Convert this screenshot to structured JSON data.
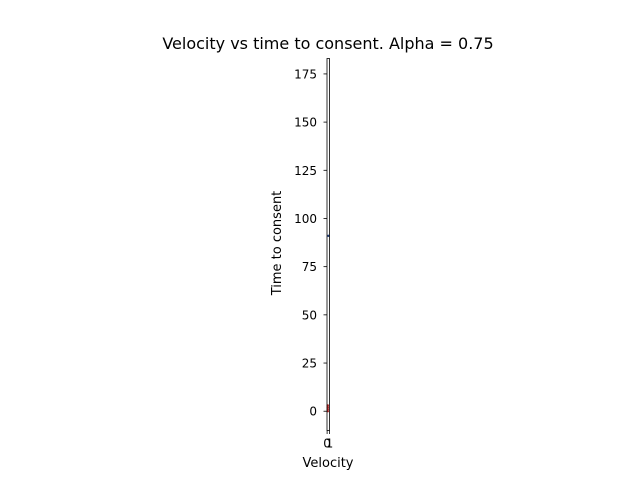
{
  "chart_data": {
    "type": "scatter",
    "title": "Velocity vs time to consent. Alpha = 0.75",
    "xlabel": "Velocity",
    "ylabel": "Time to consent",
    "xlim": [
      -0.05,
      1.05
    ],
    "ylim": [
      -10,
      183
    ],
    "grid": false,
    "legend": "none",
    "x_ticks": [
      {
        "value": 0,
        "label": "0"
      },
      {
        "value": 1,
        "label": "1"
      }
    ],
    "y_ticks": [
      {
        "value": 0,
        "label": "0"
      },
      {
        "value": 25,
        "label": "25"
      },
      {
        "value": 50,
        "label": "50"
      },
      {
        "value": 75,
        "label": "75"
      },
      {
        "value": 100,
        "label": "100"
      },
      {
        "value": 125,
        "label": "125"
      },
      {
        "value": 150,
        "label": "150"
      },
      {
        "value": 175,
        "label": "175"
      }
    ],
    "series": [
      {
        "color": "#1f3c7a",
        "points": [
          {
            "x": 0.55,
            "y": 91
          }
        ]
      },
      {
        "color": "#b22222",
        "points": [
          {
            "x": 0.3,
            "y": 0
          },
          {
            "x": 0.3,
            "y": 1
          },
          {
            "x": 0.3,
            "y": 2
          },
          {
            "x": 0.3,
            "y": 3
          }
        ]
      }
    ],
    "axes_color": "#000000"
  }
}
